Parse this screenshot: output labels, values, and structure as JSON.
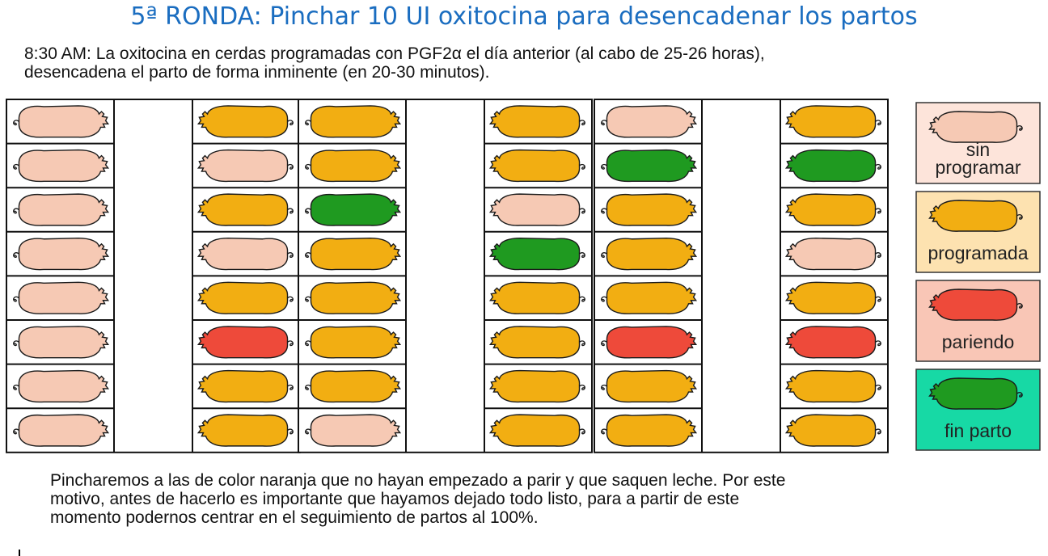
{
  "title": "5ª RONDA: Pinchar 10 UI oxitocina para desencadenar los partos",
  "intro": [
    "8:30 AM: La oxitocina en cerdas programadas con PGF2α el día anterior (al cabo de 25-26 horas),",
    "desencadena el parto de forma inminente (en 20-30 minutos)."
  ],
  "colors": {
    "sin_programar": "#f6c9b4",
    "programada": "#f2ae12",
    "pariendo": "#ee4a3a",
    "fin_parto": "#1f9a20",
    "outline": "#1a1a1a"
  },
  "pens": [
    {
      "left": [
        "sin_programar",
        "sin_programar",
        "sin_programar",
        "sin_programar",
        "sin_programar",
        "sin_programar",
        "sin_programar",
        "sin_programar"
      ],
      "right": [
        "programada",
        "sin_programar",
        "programada",
        "sin_programar",
        "programada",
        "pariendo",
        "programada",
        "programada"
      ]
    },
    {
      "left": [
        "programada",
        "programada",
        "fin_parto",
        "programada",
        "programada",
        "programada",
        "programada",
        "sin_programar"
      ],
      "right": [
        "programada",
        "programada",
        "sin_programar",
        "fin_parto",
        "programada",
        "programada",
        "programada",
        "programada"
      ]
    },
    {
      "left": [
        "sin_programar",
        "fin_parto",
        "programada",
        "programada",
        "programada",
        "pariendo",
        "programada",
        "programada"
      ],
      "right": [
        "programada",
        "fin_parto",
        "programada",
        "sin_programar",
        "programada",
        "pariendo",
        "programada",
        "programada"
      ]
    }
  ],
  "legend": [
    {
      "state": "sin_programar",
      "lines": [
        "sin",
        "programar"
      ],
      "bg": "#fde4da"
    },
    {
      "state": "programada",
      "lines": [
        "programada"
      ],
      "bg": "#fde2b0"
    },
    {
      "state": "pariendo",
      "lines": [
        "pariendo"
      ],
      "bg": "#f9c6b6"
    },
    {
      "state": "fin_parto",
      "lines": [
        "fin parto"
      ],
      "bg": "#17d9a5"
    }
  ],
  "footer": [
    "Pincharemos a las de color naranja que no hayan empezado a parir y que saquen leche. Por este",
    "motivo, antes de hacerlo es importante que hayamos dejado todo listo, para a partir de este",
    "momento podernos centrar en el seguimiento de partos al 100%."
  ]
}
